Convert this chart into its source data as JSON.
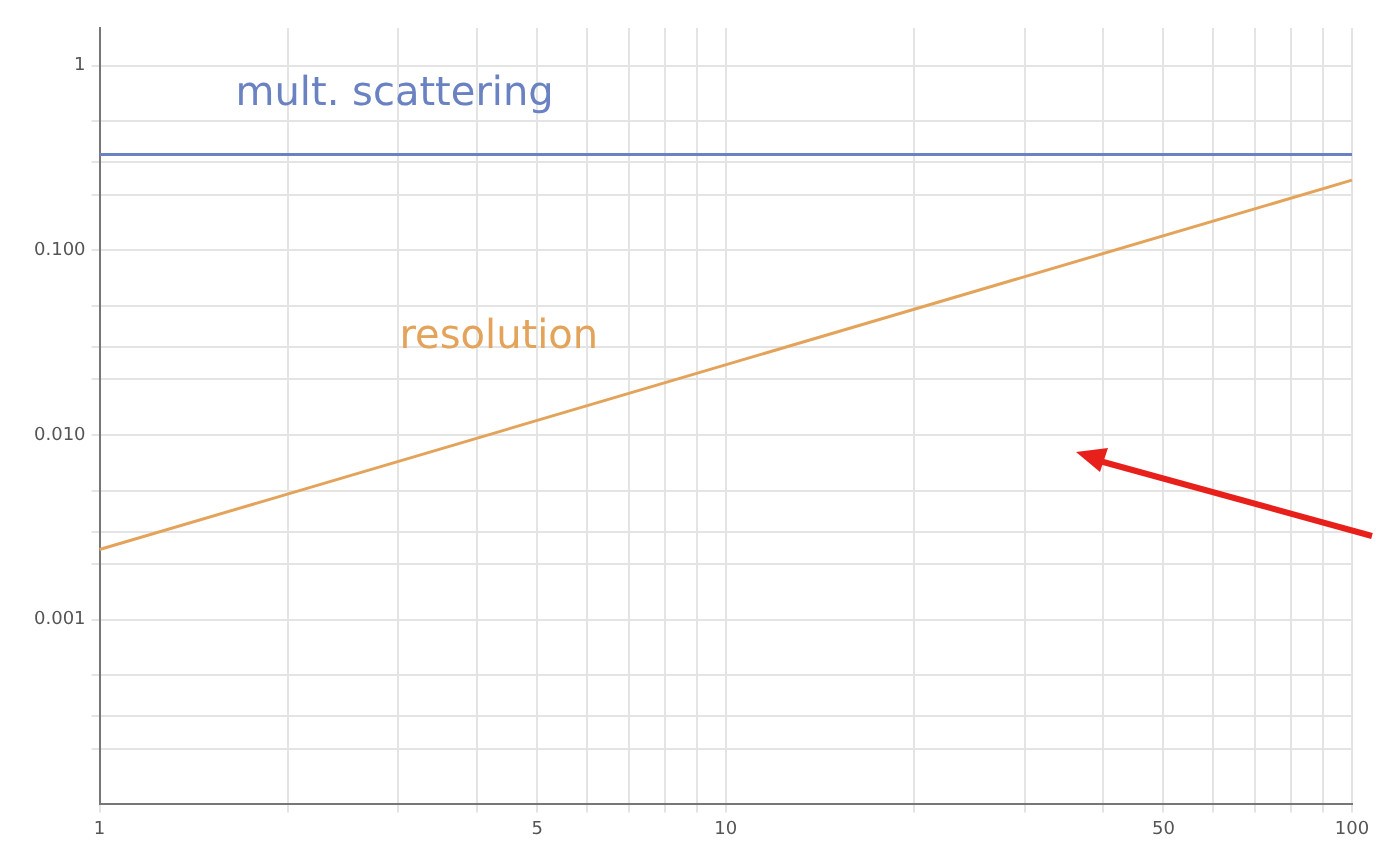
{
  "chart_data": {
    "type": "line",
    "log": "xy",
    "grid": true,
    "legend": false,
    "marker": "none",
    "line_style": "solid",
    "xlim": [
      1,
      100
    ],
    "ylim": [
      0.0001,
      1.6
    ],
    "xticks": [
      1,
      {
        "value": 2,
        "label": null
      },
      {
        "value": 3,
        "label": null
      },
      {
        "value": 4,
        "label": null
      },
      5,
      {
        "value": 6,
        "label": null
      },
      {
        "value": 7,
        "label": null
      },
      {
        "value": 8,
        "label": null
      },
      {
        "value": 9,
        "label": null
      },
      10,
      {
        "value": 20,
        "label": null
      },
      {
        "value": 30,
        "label": null
      },
      {
        "value": 40,
        "label": null
      },
      50,
      {
        "value": 60,
        "label": null
      },
      {
        "value": 70,
        "label": null
      },
      {
        "value": 80,
        "label": null
      },
      {
        "value": 90,
        "label": null
      },
      100
    ],
    "yticks": [
      {
        "value": 0.0002,
        "label": null
      },
      {
        "value": 0.0003,
        "label": null
      },
      {
        "value": 0.0005,
        "label": null
      },
      {
        "value": 0.001,
        "label": "0.001"
      },
      {
        "value": 0.002,
        "label": null
      },
      {
        "value": 0.003,
        "label": null
      },
      {
        "value": 0.005,
        "label": null
      },
      {
        "value": 0.01,
        "label": "0.010"
      },
      {
        "value": 0.02,
        "label": null
      },
      {
        "value": 0.03,
        "label": null
      },
      {
        "value": 0.05,
        "label": null
      },
      {
        "value": 0.1,
        "label": "0.100"
      },
      {
        "value": 0.2,
        "label": null
      },
      {
        "value": 0.3,
        "label": null
      },
      {
        "value": 0.5,
        "label": null
      },
      1
    ],
    "x": [
      1,
      100
    ],
    "series": [
      {
        "name": "mult. scattering",
        "color": "#6a82c2",
        "values": [
          0.33,
          0.33
        ]
      },
      {
        "name": "resolution",
        "color": "#e3a35a",
        "values": [
          0.0024,
          0.24
        ]
      }
    ]
  }
}
